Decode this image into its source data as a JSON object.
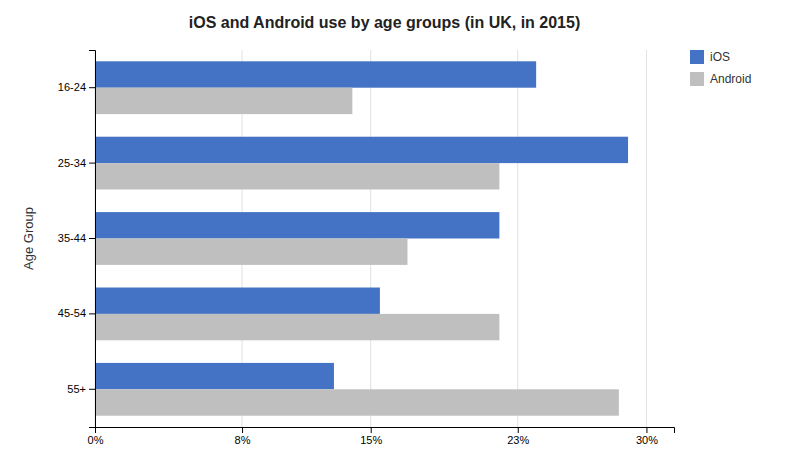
{
  "chart_data": {
    "type": "bar",
    "orientation": "horizontal",
    "title": "iOS and Android use by age groups (in UK, in 2015)",
    "categories": [
      "16-24",
      "25-34",
      "35-44",
      "45-54",
      "55+"
    ],
    "series": [
      {
        "name": "iOS",
        "color": "#4472C4",
        "values": [
          0.24,
          0.29,
          0.22,
          0.155,
          0.13
        ]
      },
      {
        "name": "Android",
        "color": "#BFBFBF",
        "values": [
          0.14,
          0.22,
          0.17,
          0.22,
          0.285
        ]
      }
    ],
    "ylabel": "Age Group",
    "xlim": [
      0,
      0.315
    ],
    "xticks": [
      {
        "value": 0,
        "label": "0%"
      },
      {
        "value": 0.08,
        "label": "8%"
      },
      {
        "value": 0.15,
        "label": "15%"
      },
      {
        "value": 0.23,
        "label": "23%"
      },
      {
        "value": 0.3,
        "label": "30%"
      }
    ],
    "grid": true,
    "legend": "right"
  }
}
